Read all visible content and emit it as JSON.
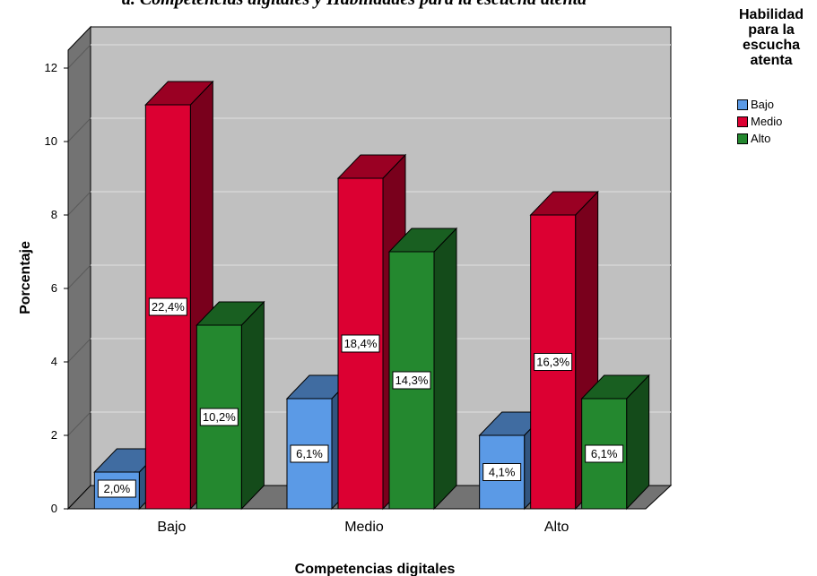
{
  "title": "a. Competencias digitales y Habilidades para la escucha atenta",
  "chart_data": {
    "type": "bar",
    "categories": [
      "Bajo",
      "Medio",
      "Alto"
    ],
    "xlabel": "Competencias digitales",
    "ylabel": "Porcentaje",
    "ylim": [
      0,
      12
    ],
    "yticks": [
      "0",
      "2",
      "4",
      "6",
      "8",
      "10",
      "12"
    ],
    "grid": true,
    "legend_position": "top-right",
    "legend_title": "Habilidad para la escucha atenta",
    "series": [
      {
        "name": "Bajo",
        "color": "#5b9ae6",
        "values": [
          1.0,
          3.0,
          2.0
        ],
        "labels": [
          "2,0%",
          "6,1%",
          "4,1%"
        ]
      },
      {
        "name": "Medio",
        "color": "#dc0032",
        "values": [
          11.0,
          9.0,
          8.0
        ],
        "labels": [
          "22,4%",
          "18,4%",
          "16,3%"
        ]
      },
      {
        "name": "Alto",
        "color": "#24882f",
        "values": [
          5.0,
          7.0,
          3.0
        ],
        "labels": [
          "10,2%",
          "14,3%",
          "6,1%"
        ]
      }
    ]
  }
}
